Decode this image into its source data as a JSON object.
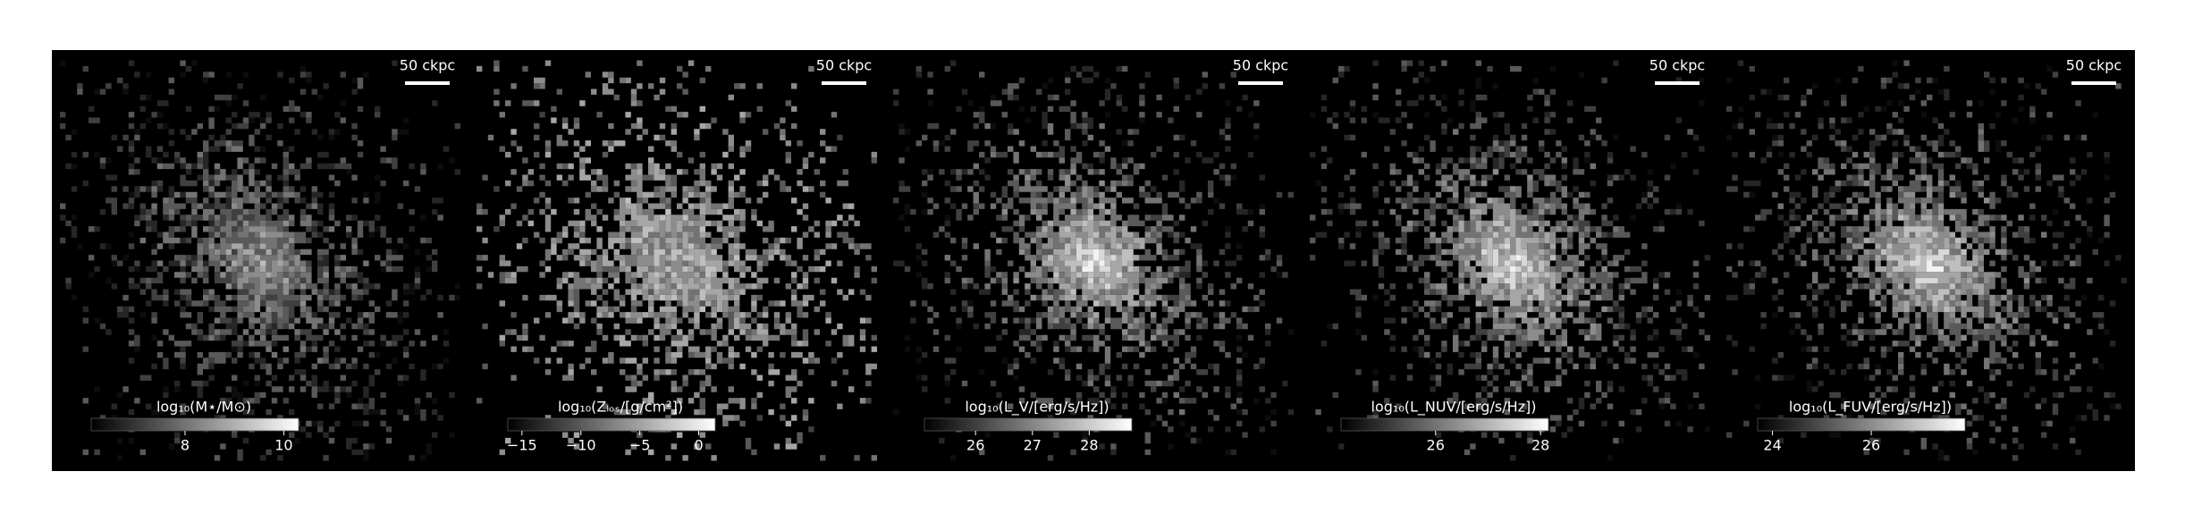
{
  "panels": [
    {
      "scale_label": "50 ckpc",
      "colorbar_label": "log₁₀(M⋆/M⊙)",
      "cbar_lim": [
        6.1,
        10.3
      ],
      "cbar_ticks": [
        8,
        10
      ]
    },
    {
      "scale_label": "50 ckpc",
      "colorbar_label": "log₁₀(Zₗₒₛ/[g/cm²])",
      "cbar_lim": [
        -16.2,
        1.4
      ],
      "cbar_ticks": [
        {
          "value": -15,
          "label": "−15"
        },
        {
          "value": -10,
          "label": "−10"
        },
        {
          "value": -5,
          "label": "−5"
        },
        0
      ]
    },
    {
      "scale_label": "50 ckpc",
      "colorbar_label": "log₁₀(L_V/[erg/s/Hz])",
      "cbar_lim": [
        25.1,
        28.75
      ],
      "cbar_ticks": [
        26,
        27,
        28
      ]
    },
    {
      "scale_label": "50 ckpc",
      "colorbar_label": "log₁₀(L_NUV/[erg/s/Hz])",
      "cbar_lim": [
        24.2,
        28.15
      ],
      "cbar_ticks": [
        26,
        28
      ]
    },
    {
      "scale_label": "50 ckpc",
      "colorbar_label": "log₁₀(L_FUV/[erg/s/Hz])",
      "cbar_lim": [
        23.7,
        27.9
      ],
      "cbar_ticks": [
        24,
        26
      ]
    }
  ]
}
